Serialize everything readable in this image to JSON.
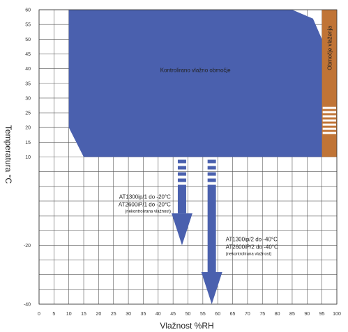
{
  "chart_data": {
    "type": "area",
    "xlabel": "Vlažnost %RH",
    "ylabel": "Temperatura °C",
    "xlim": [
      0,
      100
    ],
    "ylim": [
      -40,
      60
    ],
    "x_ticks": [
      "0",
      "5",
      "10",
      "15",
      "20",
      "25",
      "30",
      "35",
      "40",
      "45",
      "50",
      "55",
      "60",
      "65",
      "70",
      "75",
      "80",
      "85",
      "90",
      "95",
      "100"
    ],
    "y_ticks": [
      "60",
      "55",
      "50",
      "45",
      "40",
      "35",
      "30",
      "25",
      "20",
      "15",
      "10",
      "-20",
      "-40"
    ],
    "grid": true,
    "regions": [
      {
        "name": "controlled",
        "label": "Kontrolirano vlažno območje",
        "color": "#4a60ae",
        "polygon": [
          [
            10,
            20
          ],
          [
            10,
            60
          ],
          [
            85,
            60
          ],
          [
            92,
            57
          ],
          [
            95,
            50
          ],
          [
            95,
            10
          ],
          [
            15,
            10
          ]
        ]
      },
      {
        "name": "condensation",
        "label": "Območje vlaženja",
        "color": "#c07436",
        "range": {
          "x": [
            95,
            100
          ],
          "y": [
            10,
            60
          ]
        }
      }
    ],
    "arrows": [
      {
        "name": "arrow-1",
        "x": 48,
        "from": 10,
        "to": -20,
        "color": "#4a60ae",
        "lines": [
          "AT1300ip/1 do -20°C",
          "AT2600iP/1 do -20°C"
        ],
        "note": "(nekontrolirana vlažnost)"
      },
      {
        "name": "arrow-2",
        "x": 58,
        "from": 10,
        "to": -40,
        "color": "#4a60ae",
        "lines": [
          "AT1300ip/2 do -40°C",
          "AT2600iP/2 do -40°C"
        ],
        "note": "(nekontrolirana vlažnost)"
      }
    ]
  }
}
